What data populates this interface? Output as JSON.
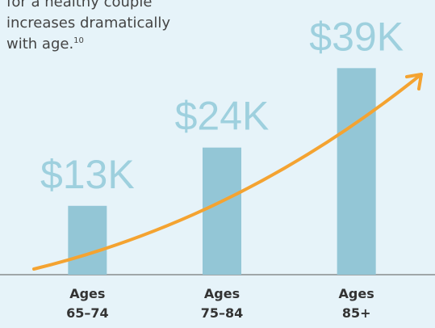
{
  "chart_data": {
    "type": "bar",
    "annotations": [
      "for a healthy couple",
      "increases dramatically",
      "with age."
    ],
    "annotation_footnote": "10",
    "categories": [
      "Ages 65–74",
      "Ages 75–84",
      "Ages 85+"
    ],
    "values": [
      13000,
      24000,
      39000
    ],
    "value_labels": [
      "$13K",
      "$24K",
      "$39K"
    ],
    "color": "#93c6d6",
    "ylim": [
      0,
      45000
    ]
  }
}
